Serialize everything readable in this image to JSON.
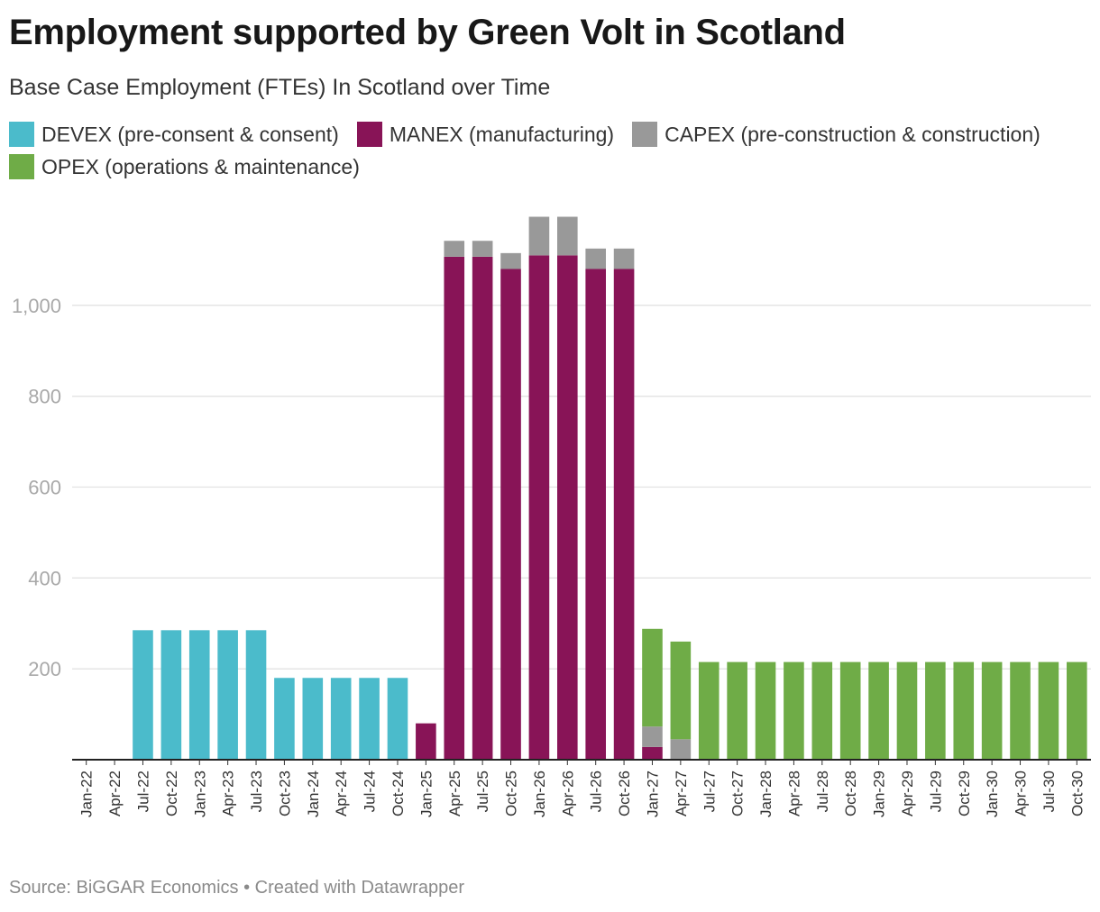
{
  "header": {
    "title": "Employment supported by Green Volt in Scotland",
    "subtitle": "Base Case Employment (FTEs) In Scotland over Time"
  },
  "legend": [
    {
      "label": "DEVEX (pre-consent & consent)",
      "color": "#4bbbcb"
    },
    {
      "label": "MANEX (manufacturing)",
      "color": "#881457"
    },
    {
      "label": "CAPEX (pre-construction & construction)",
      "color": "#999999"
    },
    {
      "label": "OPEX (operations & maintenance)",
      "color": "#6fac47"
    }
  ],
  "footer": {
    "source": "Source: BiGGAR Economics • Created with Datawrapper"
  },
  "chart_data": {
    "type": "bar",
    "stacked": true,
    "title": "Employment supported by Green Volt in Scotland",
    "subtitle": "Base Case Employment (FTEs) In Scotland over Time",
    "xlabel": "",
    "ylabel": "",
    "ylim": [
      0,
      1200
    ],
    "yticks": [
      200,
      400,
      600,
      800,
      1000
    ],
    "ytick_labels": [
      "200",
      "400",
      "600",
      "800",
      "1,000"
    ],
    "grid": true,
    "legend_position": "top",
    "categories": [
      "Jan-22",
      "Apr-22",
      "Jul-22",
      "Oct-22",
      "Jan-23",
      "Apr-23",
      "Jul-23",
      "Oct-23",
      "Jan-24",
      "Apr-24",
      "Jul-24",
      "Oct-24",
      "Jan-25",
      "Apr-25",
      "Jul-25",
      "Oct-25",
      "Jan-26",
      "Apr-26",
      "Jul-26",
      "Oct-26",
      "Jan-27",
      "Apr-27",
      "Jul-27",
      "Oct-27",
      "Jan-28",
      "Apr-28",
      "Jul-28",
      "Oct-28",
      "Jan-29",
      "Apr-29",
      "Jul-29",
      "Oct-29",
      "Jan-30",
      "Apr-30",
      "Jul-30",
      "Oct-30"
    ],
    "series": [
      {
        "name": "DEVEX (pre-consent & consent)",
        "color": "#4bbbcb",
        "values": [
          0,
          0,
          285,
          285,
          285,
          285,
          285,
          180,
          180,
          180,
          180,
          180,
          0,
          0,
          0,
          0,
          0,
          0,
          0,
          0,
          0,
          0,
          0,
          0,
          0,
          0,
          0,
          0,
          0,
          0,
          0,
          0,
          0,
          0,
          0,
          0
        ]
      },
      {
        "name": "MANEX (manufacturing)",
        "color": "#881457",
        "values": [
          0,
          0,
          0,
          0,
          0,
          0,
          0,
          0,
          0,
          0,
          0,
          0,
          80,
          1107,
          1107,
          1080,
          1110,
          1110,
          1080,
          1080,
          28,
          0,
          0,
          0,
          0,
          0,
          0,
          0,
          0,
          0,
          0,
          0,
          0,
          0,
          0,
          0
        ]
      },
      {
        "name": "CAPEX (pre-construction & construction)",
        "color": "#999999",
        "values": [
          0,
          0,
          0,
          0,
          0,
          0,
          0,
          0,
          0,
          0,
          0,
          0,
          0,
          35,
          35,
          35,
          85,
          85,
          45,
          45,
          45,
          45,
          0,
          0,
          0,
          0,
          0,
          0,
          0,
          0,
          0,
          0,
          0,
          0,
          0,
          0
        ]
      },
      {
        "name": "OPEX (operations & maintenance)",
        "color": "#6fac47",
        "values": [
          0,
          0,
          0,
          0,
          0,
          0,
          0,
          0,
          0,
          0,
          0,
          0,
          0,
          0,
          0,
          0,
          0,
          0,
          0,
          0,
          215,
          215,
          215,
          215,
          215,
          215,
          215,
          215,
          215,
          215,
          215,
          215,
          215,
          215,
          215,
          215
        ]
      }
    ]
  }
}
